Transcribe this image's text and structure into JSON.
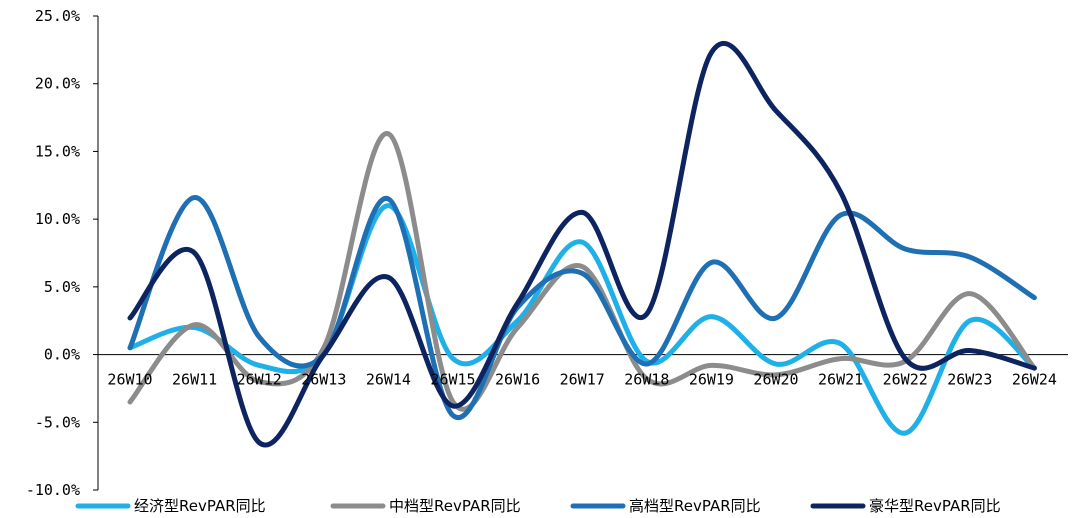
{
  "chart_data": {
    "type": "line",
    "title": "",
    "xlabel": "",
    "ylabel": "",
    "categories": [
      "26W10",
      "26W11",
      "26W12",
      "26W13",
      "26W14",
      "26W15",
      "26W16",
      "26W17",
      "26W18",
      "26W19",
      "26W20",
      "26W21",
      "26W22",
      "26W23",
      "26W24"
    ],
    "ylim": [
      -10,
      25
    ],
    "yticks": [
      -10,
      -5,
      0,
      5,
      10,
      15,
      20,
      25
    ],
    "ytick_labels": [
      "-10.0%",
      "-5.0%",
      "0.0%",
      "5.0%",
      "10.0%",
      "15.0%",
      "20.0%",
      "25.0%"
    ],
    "grid": false,
    "legend_position": "bottom",
    "smooth": true,
    "series": [
      {
        "name": "经济型RevPAR同比",
        "color": "#1fb0e8",
        "values": [
          0.5,
          2.0,
          -0.8,
          0.0,
          11.0,
          -0.3,
          2.5,
          8.3,
          -0.5,
          2.8,
          -0.7,
          0.8,
          -5.8,
          2.5,
          -1.0
        ]
      },
      {
        "name": "中档型RevPAR同比",
        "color": "#8c8c8c",
        "values": [
          -3.5,
          2.2,
          -2.0,
          0.5,
          16.3,
          -3.5,
          2.0,
          6.5,
          -1.8,
          -0.8,
          -1.5,
          -0.3,
          -0.5,
          4.5,
          -1.0
        ]
      },
      {
        "name": "高档型RevPAR同比",
        "color": "#1f6fb4",
        "values": [
          0.5,
          11.6,
          1.3,
          0.0,
          11.5,
          -4.5,
          3.5,
          6.0,
          -0.7,
          6.8,
          2.7,
          10.3,
          7.8,
          7.2,
          4.2
        ]
      },
      {
        "name": "豪华型RevPAR同比",
        "color": "#0e2460",
        "values": [
          2.7,
          7.5,
          -6.5,
          0.0,
          5.7,
          -3.8,
          3.8,
          10.5,
          3.0,
          22.3,
          18.0,
          12.0,
          -0.3,
          0.3,
          -1.0
        ]
      }
    ]
  }
}
